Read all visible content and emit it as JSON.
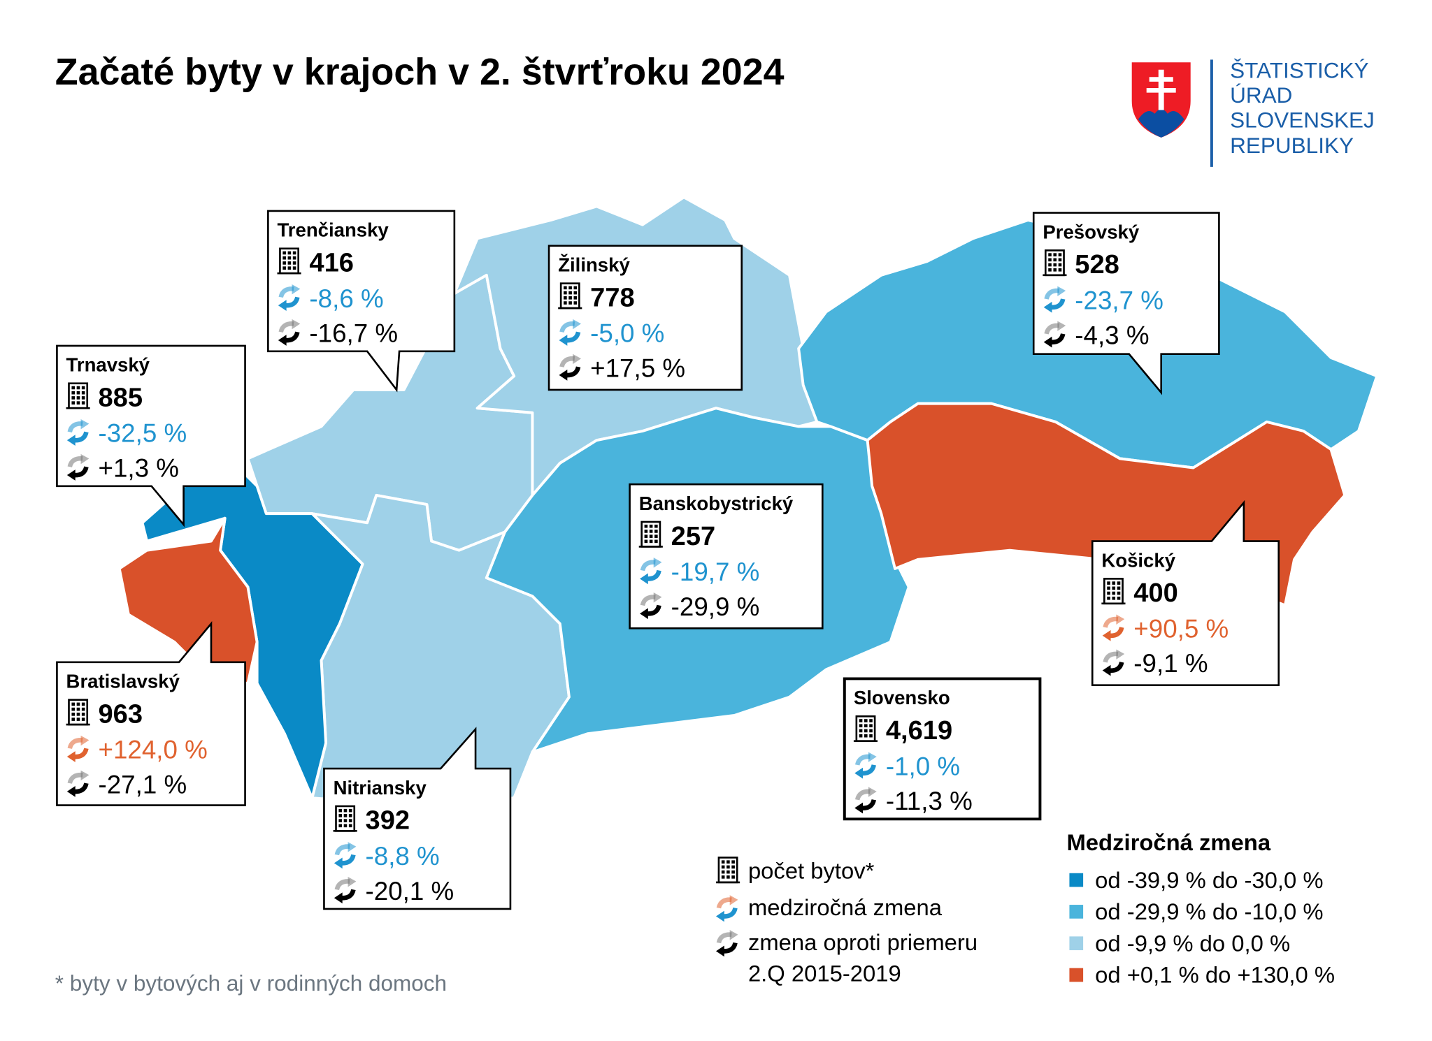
{
  "title": "Začaté byty v krajoch v 2. štvrťroku 2024",
  "logo": {
    "lines": [
      "ŠTATISTICKÝ",
      "ÚRAD",
      "SLOVENSKEJ",
      "REPUBLIKY"
    ]
  },
  "regions": [
    {
      "name": "Trenčiansky",
      "count": "416",
      "yoy": "-8,6 %",
      "vs_avg": "-16,7 %",
      "yoy_color": "#1f93cf",
      "map_color": "#9fd1e8"
    },
    {
      "name": "Žilinský",
      "count": "778",
      "yoy": "-5,0 %",
      "vs_avg": "+17,5 %",
      "yoy_color": "#1f93cf",
      "map_color": "#9fd1e8"
    },
    {
      "name": "Trnavský",
      "count": "885",
      "yoy": "-32,5 %",
      "vs_avg": "+1,3 %",
      "yoy_color": "#1f93cf",
      "map_color": "#0a8ac6"
    },
    {
      "name": "Prešovský",
      "count": "528",
      "yoy": "-23,7 %",
      "vs_avg": "-4,3 %",
      "yoy_color": "#1f93cf",
      "map_color": "#4ab4dc"
    },
    {
      "name": "Banskobystrický",
      "count": "257",
      "yoy": "-19,7 %",
      "vs_avg": "-29,9 %",
      "yoy_color": "#1f93cf",
      "map_color": "#4ab4dc"
    },
    {
      "name": "Košický",
      "count": "400",
      "yoy": "+90,5 %",
      "vs_avg": "-9,1 %",
      "yoy_color": "#e0622f",
      "map_color": "#d9512a"
    },
    {
      "name": "Bratislavský",
      "count": "963",
      "yoy": "+124,0 %",
      "vs_avg": "-27,1 %",
      "yoy_color": "#e0622f",
      "map_color": "#d9512a"
    },
    {
      "name": "Nitriansky",
      "count": "392",
      "yoy": "-8,8 %",
      "vs_avg": "-20,1 %",
      "yoy_color": "#1f93cf",
      "map_color": "#9fd1e8"
    },
    {
      "name": "Slovensko",
      "count": "4,619",
      "yoy": "-1,0 %",
      "vs_avg": "-11,3 %",
      "yoy_color": "#1f93cf"
    }
  ],
  "symbol_legend": {
    "count": "počet bytov*",
    "yoy": "medziročná zmena",
    "vs_avg": [
      "zmena oproti priemeru",
      "2.Q 2015-2019"
    ]
  },
  "color_legend": {
    "title": "Medziročná zmena",
    "items": [
      {
        "label": "od -39,9 % do -30,0 %",
        "color": "#0a8ac6"
      },
      {
        "label": "od -29,9 % do -10,0 %",
        "color": "#4ab4dc"
      },
      {
        "label": "od -9,9 % do 0,0 %",
        "color": "#9fd1e8"
      },
      {
        "label": "od +0,1 % do +130,0 %",
        "color": "#d9512a"
      }
    ]
  },
  "footnote": "* byty v bytových aj v rodinných domoch"
}
